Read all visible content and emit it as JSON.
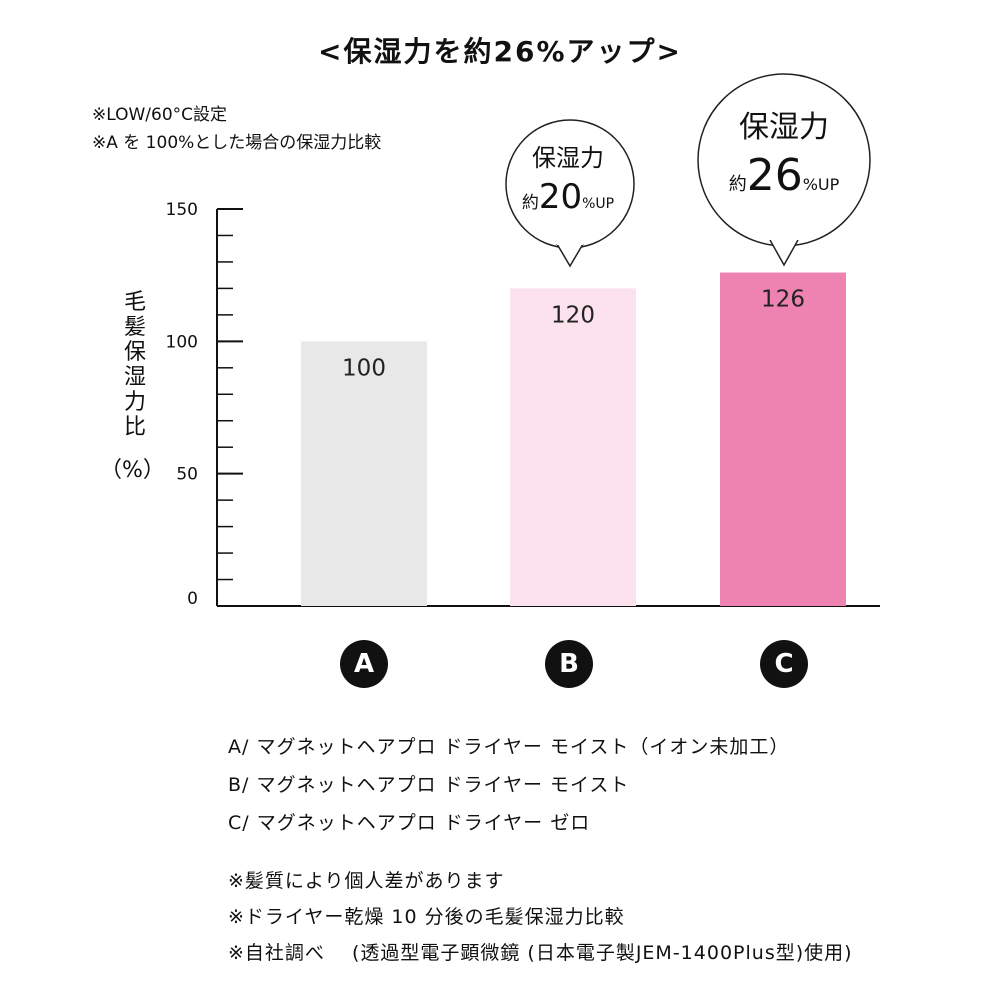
{
  "title": "<保湿力を約26%アップ>",
  "notes": [
    "※LOW/60°C設定",
    "※A を 100%とした場合の保湿力比較"
  ],
  "ylabel_chars": [
    "毛",
    "髪",
    "保",
    "湿",
    "力",
    "比"
  ],
  "ylabel_unit": "（%）",
  "callouts": [
    {
      "heading": "保湿力",
      "prefix": "約",
      "value": "20",
      "suffix": "%UP"
    },
    {
      "heading": "保湿力",
      "prefix": "約",
      "value": "26",
      "suffix": "%UP"
    }
  ],
  "legend": [
    "A/ マグネットヘアプロ ドライヤー モイスト（イオン未加工）",
    "B/ マグネットヘアプロ ドライヤー モイスト",
    "C/ マグネットヘアプロ ドライヤー ゼロ"
  ],
  "footnotes": [
    "※髪質により個人差があります",
    "※ドライヤー乾燥 10 分後の毛髪保湿力比較",
    "※自社調べ　 (透過型電子顕微鏡 (日本電子製JEM-1400Plus型)使用)"
  ],
  "chart_data": {
    "type": "bar",
    "categories": [
      "A",
      "B",
      "C"
    ],
    "values": [
      100,
      120,
      126
    ],
    "value_labels": [
      "100",
      "120",
      "126"
    ],
    "ylabel": "毛髪保湿力比（%）",
    "ylim": [
      0,
      150
    ],
    "yticks": [
      0,
      50,
      100,
      150
    ],
    "ytick_labels": [
      "0",
      "50",
      "100",
      "150"
    ],
    "minor_tick_step": 10,
    "grid": false,
    "colors": [
      "#e8e8e8",
      "#fbe2ec",
      "#ee83b2"
    ]
  }
}
